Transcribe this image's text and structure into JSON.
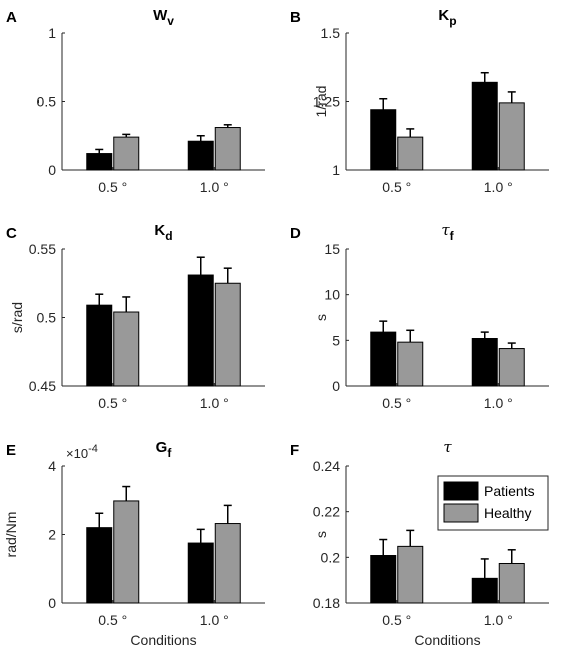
{
  "styles": {
    "patients_color": "#000000",
    "healthy_color": "#999999",
    "axis_color": "#262626"
  },
  "chart_data": [
    {
      "type": "bar",
      "panel_letter": "A",
      "title": "W",
      "title_sub": "v",
      "ylabel": "-",
      "ylim": [
        0,
        1
      ],
      "yticks": [
        "0",
        "0.5",
        "1"
      ],
      "categories": [
        "0.5 °",
        "1.0 °"
      ],
      "series": [
        {
          "name": "Patients",
          "values": [
            0.12,
            0.21
          ],
          "errors": [
            0.03,
            0.04
          ]
        },
        {
          "name": "Healthy",
          "values": [
            0.24,
            0.31
          ],
          "errors": [
            0.02,
            0.02
          ]
        }
      ],
      "xlabel": "",
      "legend": false
    },
    {
      "type": "bar",
      "panel_letter": "B",
      "title": "K",
      "title_sub": "p",
      "ylabel": "1/rad",
      "ylim": [
        1,
        1.5
      ],
      "yticks": [
        "1",
        "1.25",
        "1.5"
      ],
      "categories": [
        "0.5 °",
        "1.0 °"
      ],
      "series": [
        {
          "name": "Patients",
          "values": [
            1.22,
            1.32
          ],
          "errors": [
            0.04,
            0.035
          ]
        },
        {
          "name": "Healthy",
          "values": [
            1.12,
            1.245
          ],
          "errors": [
            0.03,
            0.04
          ]
        }
      ],
      "xlabel": "",
      "legend": false
    },
    {
      "type": "bar",
      "panel_letter": "C",
      "title": "K",
      "title_sub": "d",
      "ylabel": "s/rad",
      "ylim": [
        0.45,
        0.55
      ],
      "yticks": [
        "0.45",
        "0.5",
        "0.55"
      ],
      "categories": [
        "0.5 °",
        "1.0 °"
      ],
      "series": [
        {
          "name": "Patients",
          "values": [
            0.509,
            0.531
          ],
          "errors": [
            0.008,
            0.013
          ]
        },
        {
          "name": "Healthy",
          "values": [
            0.504,
            0.525
          ],
          "errors": [
            0.011,
            0.011
          ]
        }
      ],
      "xlabel": "",
      "legend": false
    },
    {
      "type": "bar",
      "panel_letter": "D",
      "title": "τ",
      "title_sub": "f",
      "ylabel": "s",
      "ylim": [
        0,
        15
      ],
      "yticks": [
        "0",
        "5",
        "10",
        "15"
      ],
      "categories": [
        "0.5 °",
        "1.0 °"
      ],
      "series": [
        {
          "name": "Patients",
          "values": [
            5.9,
            5.2
          ],
          "errors": [
            1.2,
            0.7
          ]
        },
        {
          "name": "Healthy",
          "values": [
            4.8,
            4.1
          ],
          "errors": [
            1.3,
            0.6
          ]
        }
      ],
      "xlabel": "",
      "legend": false
    },
    {
      "type": "bar",
      "panel_letter": "E",
      "title": "G",
      "title_sub": "f",
      "ylabel": "rad/Nm",
      "multiplier": "×10",
      "multiplier_exp": "-4",
      "ylim": [
        0,
        4
      ],
      "yticks": [
        "0",
        "2",
        "4"
      ],
      "categories": [
        "0.5 °",
        "1.0 °"
      ],
      "series": [
        {
          "name": "Patients",
          "values": [
            2.2,
            1.75
          ],
          "errors": [
            0.42,
            0.4
          ]
        },
        {
          "name": "Healthy",
          "values": [
            2.98,
            2.32
          ],
          "errors": [
            0.42,
            0.53
          ]
        }
      ],
      "xlabel": "Conditions",
      "legend": false
    },
    {
      "type": "bar",
      "panel_letter": "F",
      "title": "τ",
      "title_sub": "",
      "ylabel": "s",
      "ylim": [
        0.18,
        0.24
      ],
      "yticks": [
        "0.18",
        "0.2",
        "0.22",
        "0.24"
      ],
      "categories": [
        "0.5 °",
        "1.0 °"
      ],
      "series": [
        {
          "name": "Patients",
          "values": [
            0.2008,
            0.1908
          ],
          "errors": [
            0.007,
            0.0085
          ]
        },
        {
          "name": "Healthy",
          "values": [
            0.2048,
            0.1973
          ],
          "errors": [
            0.007,
            0.006
          ]
        }
      ],
      "xlabel": "Conditions",
      "legend": true,
      "legend_position": "top-right"
    }
  ]
}
